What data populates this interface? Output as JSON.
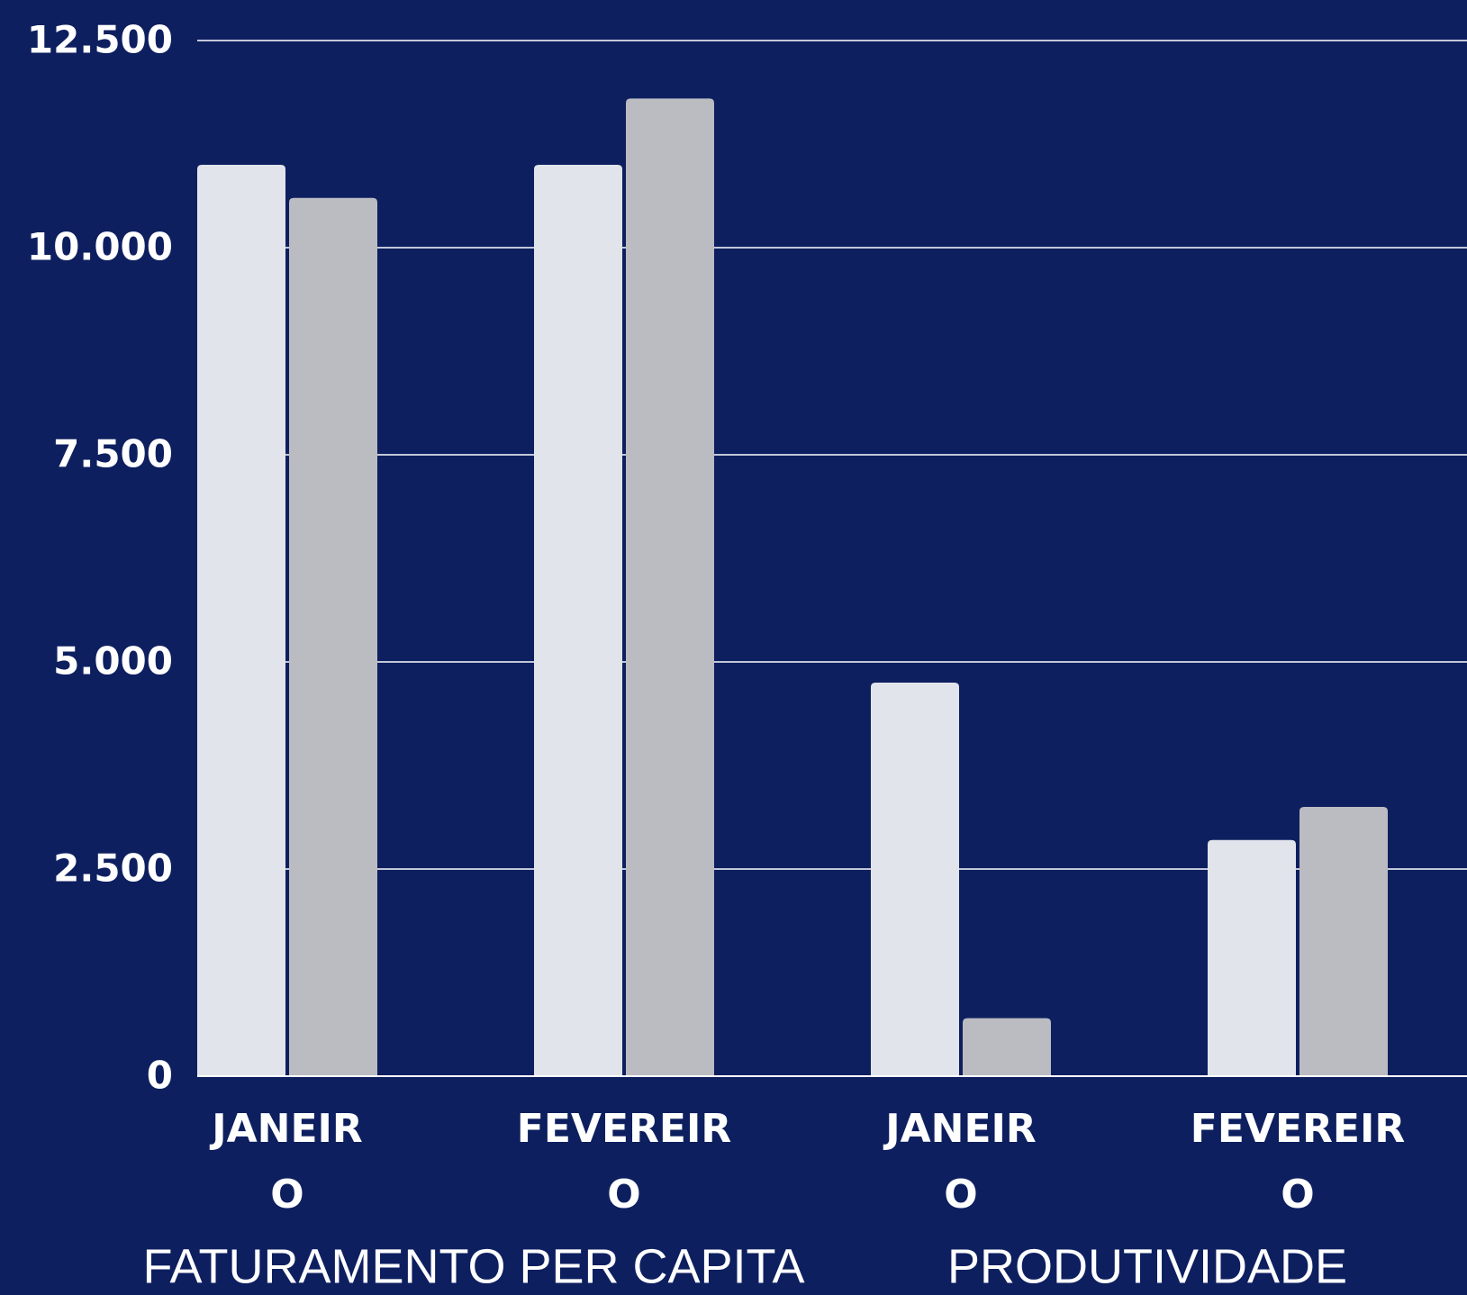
{
  "chart_data": {
    "type": "bar",
    "categories": [
      "JANEIR\nO",
      "FEVEREIR\nO",
      "JANEIR\nO",
      "FEVEREIR\nO"
    ],
    "group_labels": [
      "FATURAMENTO PER CAPITA",
      "PRODUTIVIDADE"
    ],
    "series": [
      {
        "color": "#e1e4ea",
        "values": [
          11000,
          11000,
          4750,
          2850
        ]
      },
      {
        "color": "#bbbcc1",
        "values": [
          10600,
          11800,
          700,
          3250
        ]
      }
    ],
    "ylim": [
      0,
      12500
    ],
    "yticks": [
      0,
      {
        "value": 2500,
        "label": "2.500"
      },
      {
        "value": 5000,
        "label": "5.000"
      },
      {
        "value": 7500,
        "label": "7.500"
      },
      {
        "value": 10000,
        "label": "10.000"
      },
      {
        "value": 12500,
        "label": "12.500"
      }
    ],
    "grid": true
  }
}
